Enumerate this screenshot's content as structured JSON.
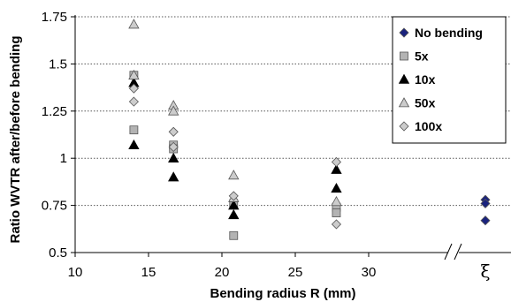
{
  "chart_data": {
    "type": "scatter",
    "title": "",
    "xlabel": "Bending radius R (mm)",
    "ylabel": "Ratio WVTR after/before bending",
    "xlim": [
      10,
      35
    ],
    "ylim": [
      0.5,
      1.75
    ],
    "x_ticks": [
      "10",
      "15",
      "20",
      "25",
      "30"
    ],
    "y_ticks": [
      "0.5",
      "0.75",
      "1",
      "1.25",
      "1.5",
      "1.75"
    ],
    "break_category_label": "ξ",
    "grid": "horizontal-dotted",
    "legend_position": "top-right",
    "colors": {
      "no_bending": "#1a237e",
      "gray_light": "#cccccc",
      "gray_mid": "#b3b3b3",
      "black": "#000000"
    },
    "series": [
      {
        "name": "No bending",
        "marker": "diamond",
        "fill": "#1a237e",
        "points": [
          {
            "x": "ξ",
            "y": 0.78
          },
          {
            "x": "ξ",
            "y": 0.76
          },
          {
            "x": "ξ",
            "y": 0.67
          }
        ]
      },
      {
        "name": "5x",
        "marker": "square",
        "fill": "#b3b3b3",
        "points": [
          {
            "x": 14,
            "y": 1.44
          },
          {
            "x": 14,
            "y": 1.15
          },
          {
            "x": 16.7,
            "y": 1.07
          },
          {
            "x": 16.7,
            "y": 1.05
          },
          {
            "x": 20.8,
            "y": 0.76
          },
          {
            "x": 20.8,
            "y": 0.59
          },
          {
            "x": 27.8,
            "y": 0.74
          },
          {
            "x": 27.8,
            "y": 0.71
          }
        ]
      },
      {
        "name": "10x",
        "marker": "triangle",
        "fill": "#000000",
        "points": [
          {
            "x": 14,
            "y": 1.4
          },
          {
            "x": 14,
            "y": 1.07
          },
          {
            "x": 16.7,
            "y": 1.0
          },
          {
            "x": 16.7,
            "y": 0.9
          },
          {
            "x": 20.8,
            "y": 0.75
          },
          {
            "x": 20.8,
            "y": 0.7
          },
          {
            "x": 27.8,
            "y": 0.94
          },
          {
            "x": 27.8,
            "y": 0.84
          }
        ]
      },
      {
        "name": "50x",
        "marker": "triangle",
        "fill": "#cccccc",
        "points": [
          {
            "x": 14,
            "y": 1.71
          },
          {
            "x": 14,
            "y": 1.44
          },
          {
            "x": 16.7,
            "y": 1.28
          },
          {
            "x": 16.7,
            "y": 1.25
          },
          {
            "x": 20.8,
            "y": 0.91
          },
          {
            "x": 20.8,
            "y": 0.79
          },
          {
            "x": 27.8,
            "y": 0.77
          }
        ]
      },
      {
        "name": "100x",
        "marker": "diamond",
        "fill": "#cccccc",
        "points": [
          {
            "x": 14,
            "y": 1.37
          },
          {
            "x": 14,
            "y": 1.3
          },
          {
            "x": 16.7,
            "y": 1.14
          },
          {
            "x": 16.7,
            "y": 1.06
          },
          {
            "x": 20.8,
            "y": 0.8
          },
          {
            "x": 27.8,
            "y": 0.98
          },
          {
            "x": 27.8,
            "y": 0.65
          }
        ]
      }
    ]
  }
}
